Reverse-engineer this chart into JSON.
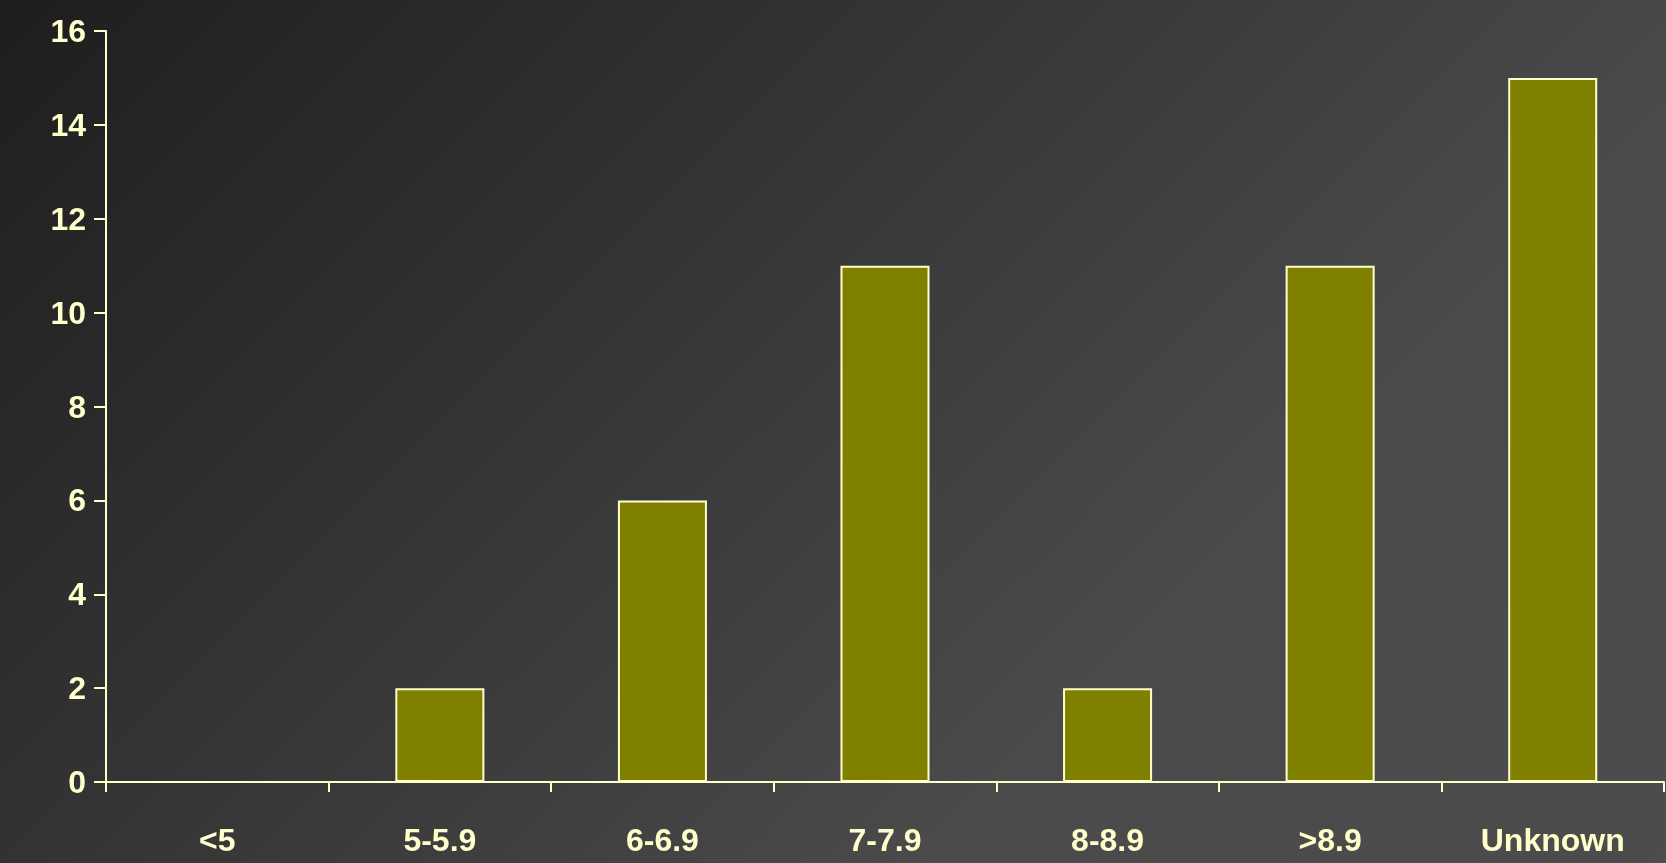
{
  "chart_data": {
    "type": "bar",
    "categories": [
      "<5",
      "5-5.9",
      "6-6.9",
      "7-7.9",
      "8-8.9",
      ">8.9",
      "Unknown"
    ],
    "values": [
      0,
      2,
      6,
      11,
      2,
      11,
      15
    ],
    "color": "#808000",
    "ylim": [
      0,
      16
    ],
    "yticks": [
      0,
      2,
      4,
      6,
      8,
      10,
      12,
      14,
      16
    ],
    "grid": false
  }
}
